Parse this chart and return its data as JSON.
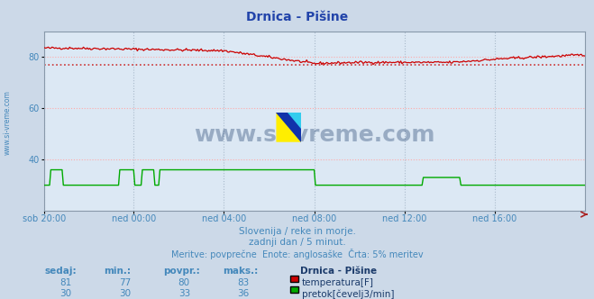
{
  "title": "Drnica - Pišine",
  "background_color": "#ccd9e8",
  "plot_bg_color": "#dce8f4",
  "x_labels": [
    "sob 20:00",
    "ned 00:00",
    "ned 04:00",
    "ned 08:00",
    "ned 12:00",
    "ned 16:00"
  ],
  "x_ticks_frac": [
    0.0,
    0.167,
    0.333,
    0.5,
    0.667,
    0.833
  ],
  "total_points": 432,
  "ylim": [
    20,
    90
  ],
  "yticks": [
    40,
    60,
    80
  ],
  "temp_color": "#cc0000",
  "flow_color": "#00aa00",
  "avg_line_color": "#cc3333",
  "avg_temp": 77.0,
  "grid_h_color": "#ffaaaa",
  "grid_v_color": "#aabbcc",
  "subtitle1": "Slovenija / reke in morje.",
  "subtitle2": "zadnji dan / 5 minut.",
  "subtitle3": "Meritve: povprečne  Enote: anglosaške  Črta: 5% meritev",
  "footer_color": "#4488bb",
  "legend_title": "Drnica - Pišine",
  "legend_items": [
    "temperatura[F]",
    "pretok[čevelj3/min]"
  ],
  "legend_colors": [
    "#cc0000",
    "#00aa00"
  ],
  "table_headers": [
    "sedaj:",
    "min.:",
    "povpr.:",
    "maks.:"
  ],
  "table_data": [
    [
      81,
      77,
      80,
      83
    ],
    [
      30,
      30,
      33,
      36
    ]
  ],
  "watermark": "www.si-vreme.com",
  "ylabel_left": "www.si-vreme.com",
  "title_color": "#2244aa"
}
